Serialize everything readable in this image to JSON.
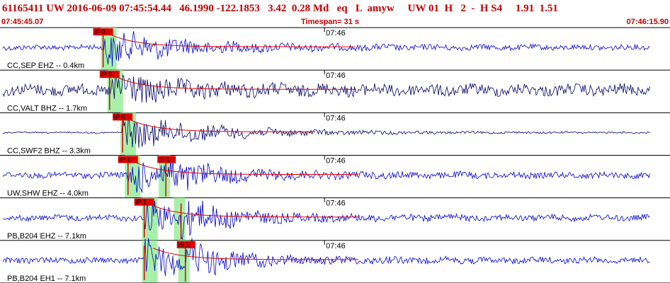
{
  "header": {
    "title": "61165411 UW 2016-06-09 07:45:54.44   46.1990 -122.1853   3.42  0.28 Md   eq   L  amyw     UW 01  H   2  -  H S4     1.91  1.51"
  },
  "time": {
    "start_label": "07:45:45.07",
    "timespan_label": "Timespan=  31 s",
    "end_label": "07:46:15.90",
    "minute_tick_label": "07:46"
  },
  "colors": {
    "trace_blue": "#0000cc",
    "trace_navy": "#000066",
    "pick_red": "#dd0000",
    "window_green": "#a8f0a8",
    "header_red": "#c00000"
  },
  "channels": [
    {
      "label": "CC,SEP EHZ -- 0.4km",
      "pick_label": "iP 0",
      "color": "#0000cc",
      "pick_time": 4.7,
      "win_time": 4.6,
      "s_time": null,
      "s_label": "",
      "amp": 0.7,
      "coda": 0.95
    },
    {
      "label": "CC,VALT BHZ -- 1.7km",
      "pick_label": "iP 0",
      "color": "#000066",
      "pick_time": 5.0,
      "win_time": 4.9,
      "s_time": null,
      "s_label": "",
      "amp": 1.5,
      "coda": 0.5
    },
    {
      "label": "CC,SWF2 BHZ -- 3.3km",
      "pick_label": "iP 0",
      "color": "#000066",
      "pick_time": 5.6,
      "win_time": 5.5,
      "s_time": null,
      "s_label": "",
      "amp": 0.18,
      "coda": 1.4
    },
    {
      "label": "UW,SHW EHZ -- 4.0km",
      "pick_label": "iP 1",
      "color": "#0000cc",
      "pick_time": 5.85,
      "win_time": 5.7,
      "s_time": 7.6,
      "s_label": "iS 1",
      "amp": 0.8,
      "coda": 0.6
    },
    {
      "label": "PB,B204 EHZ -- 7.1km",
      "pick_label": "iP 1",
      "color": "#0000cc",
      "pick_time": 6.6,
      "win_time": 6.5,
      "s_time": 8.3,
      "s_label": "",
      "amp": 0.8,
      "coda": 0.5
    },
    {
      "label": "PB,B204 EH1 -- 7.1km",
      "pick_label": "",
      "color": "#0000cc",
      "pick_time": 6.6,
      "win_time": 6.5,
      "s_time": 8.5,
      "s_label": "iS 1",
      "amp": 0.8,
      "coda": 0.6
    }
  ]
}
